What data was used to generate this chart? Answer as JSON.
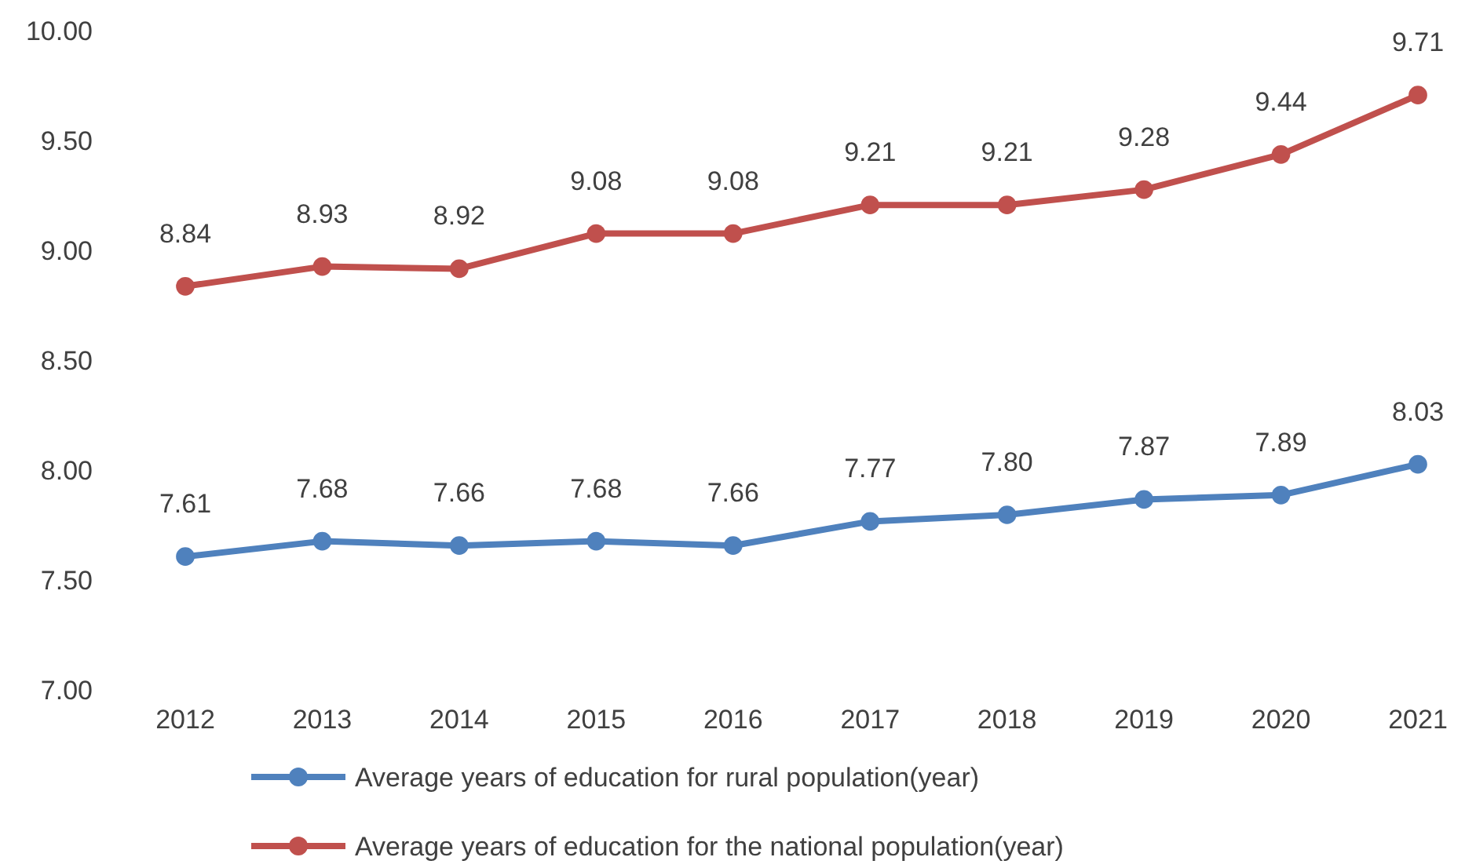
{
  "chart_data": {
    "type": "line",
    "categories": [
      "2012",
      "2013",
      "2014",
      "2015",
      "2016",
      "2017",
      "2018",
      "2019",
      "2020",
      "2021"
    ],
    "series": [
      {
        "name": "Average years of education for rural population(year)",
        "color": "#4f81bd",
        "values": [
          7.61,
          7.68,
          7.66,
          7.68,
          7.66,
          7.77,
          7.8,
          7.87,
          7.89,
          8.03
        ],
        "value_labels": [
          "7.61",
          "7.68",
          "7.66",
          "7.68",
          "7.66",
          "7.77",
          "7.80",
          "7.87",
          "7.89",
          "8.03"
        ]
      },
      {
        "name": "Average years of education for the national population(year)",
        "color": "#c0504d",
        "values": [
          8.84,
          8.93,
          8.92,
          9.08,
          9.08,
          9.21,
          9.21,
          9.28,
          9.44,
          9.71
        ],
        "value_labels": [
          "8.84",
          "8.93",
          "8.92",
          "9.08",
          "9.08",
          "9.21",
          "9.21",
          "9.28",
          "9.44",
          "9.71"
        ]
      }
    ],
    "ylim": [
      7,
      10
    ],
    "yticks": [
      {
        "value": 7,
        "label": "7.00"
      },
      {
        "value": 7.5,
        "label": "7.50"
      },
      {
        "value": 8,
        "label": "8.00"
      },
      {
        "value": 8.5,
        "label": "8.50"
      },
      {
        "value": 9,
        "label": "9.00"
      },
      {
        "value": 9.5,
        "label": "9.50"
      },
      {
        "value": 10,
        "label": "10.00"
      }
    ],
    "marker": "circle",
    "line_style": "solid",
    "legend": "bottom"
  }
}
